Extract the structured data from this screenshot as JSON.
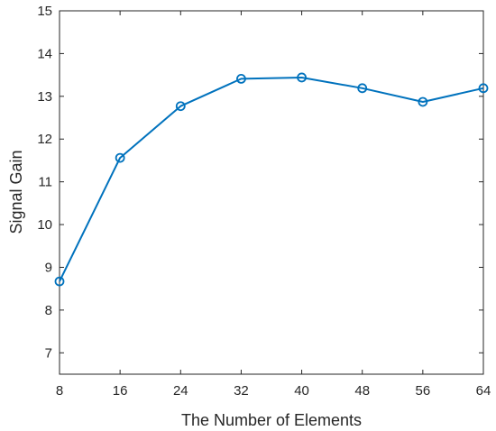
{
  "chart_data": {
    "type": "line",
    "xlabel": "The Number of Elements",
    "ylabel": "Signal Gain",
    "xlim": [
      8,
      64
    ],
    "ylim": [
      6.5,
      15
    ],
    "xticks": [
      8,
      16,
      24,
      32,
      40,
      48,
      56,
      64
    ],
    "yticks": [
      7,
      8,
      9,
      10,
      11,
      12,
      13,
      14,
      15
    ],
    "grid": false,
    "series": [
      {
        "color": "#0072BD",
        "marker": "circle",
        "x": [
          8,
          16,
          24,
          32,
          40,
          48,
          56,
          64
        ],
        "y": [
          8.67,
          11.56,
          12.77,
          13.41,
          13.44,
          13.19,
          12.87,
          13.19
        ]
      }
    ]
  }
}
